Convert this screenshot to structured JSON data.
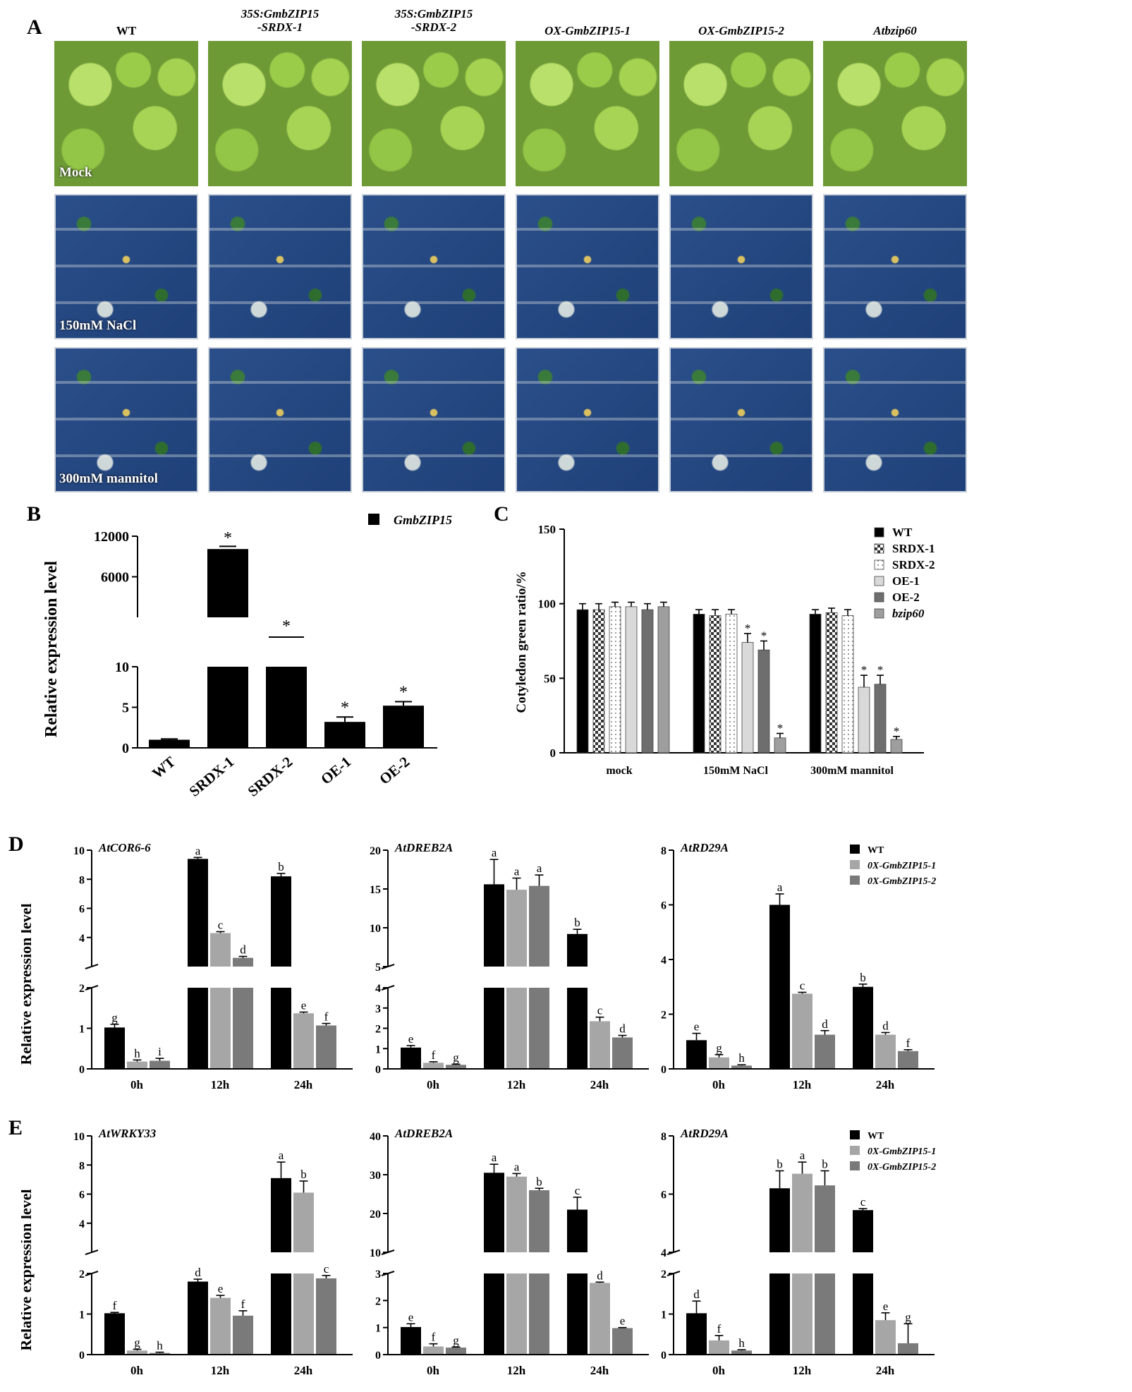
{
  "panelA": {
    "letter": "A",
    "columns": [
      {
        "title": "WT",
        "italic": false
      },
      {
        "title": "35S:GmbZIP15\n-SRDX-1",
        "italic": true
      },
      {
        "title": "35S:GmbZIP15\n-SRDX-2",
        "italic": true
      },
      {
        "title": "OX-GmbZIP15-1",
        "italic": true
      },
      {
        "title": "OX-GmbZIP15-2",
        "italic": true
      },
      {
        "title": "Atbzip60",
        "italic": true
      }
    ],
    "rows": [
      {
        "label": "Mock",
        "style": "green"
      },
      {
        "label": "150mM NaCl",
        "style": "blue"
      },
      {
        "label": "300mM mannitol",
        "style": "blue"
      }
    ]
  },
  "panelB": {
    "letter": "B",
    "legend": "GmbZIP15",
    "ylabel": "Relative expression level",
    "categories": [
      "WT",
      "SRDX-1",
      "SRDX-2",
      "OE-1",
      "OE-2"
    ],
    "upper_ticks": [
      "6000",
      "12000"
    ],
    "lower_ticks": [
      "0",
      "5",
      "10"
    ]
  },
  "panelC": {
    "letter": "C",
    "ylabel": "Cotyledon green ratio/%",
    "yticks": [
      "0",
      "50",
      "100",
      "150"
    ],
    "groups": [
      "mock",
      "150mM NaCl",
      "300mM mannitol"
    ],
    "legend": [
      "WT",
      "SRDX-1",
      "SRDX-2",
      "OE-1",
      "OE-2",
      "bzip60"
    ]
  },
  "panelD": {
    "letter": "D",
    "ylabel": "Relative expression level",
    "legend": [
      "WT",
      "0X-GmbZIP15-1",
      "0X-GmbZIP15-2"
    ],
    "groups": [
      "0h",
      "12h",
      "24h"
    ]
  },
  "panelE": {
    "letter": "E",
    "ylabel": "Relative expression level",
    "legend": [
      "WT",
      "0X-GmbZIP15-1",
      "0X-GmbZIP15-2"
    ],
    "groups": [
      "0h",
      "12h",
      "24h"
    ]
  },
  "colors": {
    "WT": "#000000",
    "line1": "#a6a6a6",
    "line2": "#7a7a7a",
    "OE1": "#d9d9d9",
    "OE2": "#6e6e6e",
    "bzip60": "#9e9e9e"
  },
  "chart_data": [
    {
      "id": "B",
      "type": "bar",
      "categories": [
        "WT",
        "SRDX-1",
        "SRDX-2",
        "OE-1",
        "OE-2"
      ],
      "series": [
        {
          "name": "GmbZIP15",
          "values": [
            1,
            10100,
            10,
            3.2,
            5.2
          ],
          "errors": [
            0.1,
            400,
            0,
            0.6,
            0.5
          ]
        }
      ],
      "significance": [
        "",
        "*",
        "*",
        "*",
        "*"
      ],
      "ylabel": "Relative expression level",
      "y_break": {
        "lower": [
          0,
          10
        ],
        "upper": [
          10,
          12000
        ]
      }
    },
    {
      "id": "C",
      "type": "bar",
      "categories": [
        "mock",
        "150mM NaCl",
        "300mM mannitol"
      ],
      "series": [
        {
          "name": "WT",
          "values": [
            96,
            93,
            93
          ],
          "errors": [
            4,
            3,
            3
          ]
        },
        {
          "name": "SRDX-1",
          "values": [
            96,
            92,
            94
          ],
          "errors": [
            4,
            4,
            3
          ]
        },
        {
          "name": "SRDX-2",
          "values": [
            98,
            93,
            92
          ],
          "errors": [
            3,
            3,
            4
          ]
        },
        {
          "name": "OE-1",
          "values": [
            98,
            74,
            44
          ],
          "errors": [
            3,
            6,
            8
          ]
        },
        {
          "name": "OE-2",
          "values": [
            96,
            69,
            46
          ],
          "errors": [
            4,
            6,
            6
          ]
        },
        {
          "name": "bzip60",
          "values": [
            98,
            10,
            9
          ],
          "errors": [
            3,
            3,
            2
          ]
        }
      ],
      "significance": [
        [
          "",
          "",
          "",
          "",
          "",
          ""
        ],
        [
          "",
          "",
          "",
          "*",
          "*",
          "*"
        ],
        [
          "",
          "",
          "",
          "*",
          "*",
          "*"
        ]
      ],
      "ylabel": "Cotyledon green ratio/%",
      "ylim": [
        0,
        150
      ]
    },
    {
      "id": "D1",
      "type": "bar",
      "title": "AtCOR6-6",
      "categories": [
        "0h",
        "12h",
        "24h"
      ],
      "series": [
        {
          "name": "WT",
          "values": [
            1.02,
            9.4,
            8.2
          ],
          "errors": [
            0.08,
            0.1,
            0.2
          ]
        },
        {
          "name": "0X-GmbZIP15-1",
          "values": [
            0.18,
            4.3,
            1.37
          ],
          "errors": [
            0.04,
            0.1,
            0.03
          ]
        },
        {
          "name": "0X-GmbZIP15-2",
          "values": [
            0.2,
            2.6,
            1.07
          ],
          "errors": [
            0.06,
            0.1,
            0.05
          ]
        }
      ],
      "letters": [
        [
          "g",
          "h",
          "i"
        ],
        [
          "a",
          "c",
          "d"
        ],
        [
          "b",
          "e",
          "f"
        ]
      ],
      "y_break": {
        "lower": [
          0,
          2
        ],
        "upper": [
          2,
          10
        ]
      }
    },
    {
      "id": "D2",
      "type": "bar",
      "title": "AtDREB2A",
      "categories": [
        "0h",
        "12h",
        "24h"
      ],
      "series": [
        {
          "name": "WT",
          "values": [
            1.05,
            15.6,
            9.2
          ],
          "errors": [
            0.1,
            3.2,
            0.6
          ]
        },
        {
          "name": "0X-GmbZIP15-1",
          "values": [
            0.3,
            14.9,
            2.35
          ],
          "errors": [
            0.05,
            1.5,
            0.2
          ]
        },
        {
          "name": "0X-GmbZIP15-2",
          "values": [
            0.2,
            15.4,
            1.55
          ],
          "errors": [
            0.03,
            1.4,
            0.1
          ]
        }
      ],
      "letters": [
        [
          "e",
          "f",
          "g"
        ],
        [
          "a",
          "a",
          "a"
        ],
        [
          "b",
          "c",
          "d"
        ]
      ],
      "y_break": {
        "lower": [
          0,
          4
        ],
        "upper": [
          5,
          20
        ]
      }
    },
    {
      "id": "D3",
      "type": "bar",
      "title": "AtRD29A",
      "categories": [
        "0h",
        "12h",
        "24h"
      ],
      "series": [
        {
          "name": "WT",
          "values": [
            1.05,
            6.0,
            3.0
          ],
          "errors": [
            0.25,
            0.4,
            0.1
          ]
        },
        {
          "name": "0X-GmbZIP15-1",
          "values": [
            0.42,
            2.75,
            1.25
          ],
          "errors": [
            0.1,
            0.05,
            0.08
          ]
        },
        {
          "name": "0X-GmbZIP15-2",
          "values": [
            0.12,
            1.25,
            0.65
          ],
          "errors": [
            0.03,
            0.15,
            0.05
          ]
        }
      ],
      "letters": [
        [
          "e",
          "g",
          "h"
        ],
        [
          "a",
          "c",
          "d"
        ],
        [
          "b",
          "d",
          "f"
        ]
      ],
      "ylim": [
        0,
        8
      ]
    },
    {
      "id": "E1",
      "type": "bar",
      "title": "AtWRKY33",
      "categories": [
        "0h",
        "12h",
        "24h"
      ],
      "series": [
        {
          "name": "WT",
          "values": [
            1.02,
            1.8,
            7.1
          ],
          "errors": [
            0.02,
            0.06,
            1.1
          ]
        },
        {
          "name": "0X-GmbZIP15-1",
          "values": [
            0.1,
            1.4,
            6.1
          ],
          "errors": [
            0.03,
            0.06,
            0.8
          ]
        },
        {
          "name": "0X-GmbZIP15-2",
          "values": [
            0.04,
            0.96,
            1.88
          ],
          "errors": [
            0.02,
            0.12,
            0.07
          ]
        }
      ],
      "letters": [
        [
          "f",
          "g",
          "h"
        ],
        [
          "d",
          "e",
          "f"
        ],
        [
          "a",
          "b",
          "c"
        ]
      ],
      "y_break": {
        "lower": [
          0,
          2
        ],
        "upper": [
          2,
          10
        ]
      }
    },
    {
      "id": "E2",
      "type": "bar",
      "title": "AtDREB2A",
      "categories": [
        "0h",
        "12h",
        "24h"
      ],
      "series": [
        {
          "name": "WT",
          "values": [
            1.02,
            30.5,
            21
          ],
          "errors": [
            0.12,
            2.2,
            3.2
          ]
        },
        {
          "name": "0X-GmbZIP15-1",
          "values": [
            0.3,
            29.5,
            2.65
          ],
          "errors": [
            0.1,
            0.8,
            0.03
          ]
        },
        {
          "name": "0X-GmbZIP15-2",
          "values": [
            0.26,
            26,
            0.98
          ],
          "errors": [
            0.02,
            0.5,
            0.02
          ]
        }
      ],
      "letters": [
        [
          "e",
          "f",
          "g"
        ],
        [
          "a",
          "a",
          "b"
        ],
        [
          "c",
          "d",
          "e"
        ]
      ],
      "y_break": {
        "lower": [
          0,
          3
        ],
        "upper": [
          10,
          40
        ]
      }
    },
    {
      "id": "E3",
      "type": "bar",
      "title": "AtRD29A",
      "categories": [
        "0h",
        "12h",
        "24h"
      ],
      "series": [
        {
          "name": "WT",
          "values": [
            1.02,
            6.2,
            5.45
          ],
          "errors": [
            0.3,
            0.6,
            0.05
          ]
        },
        {
          "name": "0X-GmbZIP15-1",
          "values": [
            0.35,
            6.7,
            0.85
          ],
          "errors": [
            0.12,
            0.4,
            0.18
          ]
        },
        {
          "name": "0X-GmbZIP15-2",
          "values": [
            0.1,
            6.3,
            0.28
          ],
          "errors": [
            0.02,
            0.5,
            0.48
          ]
        }
      ],
      "letters": [
        [
          "d",
          "f",
          "h"
        ],
        [
          "b",
          "a",
          "b"
        ],
        [
          "c",
          "e",
          "g"
        ]
      ],
      "y_break": {
        "lower": [
          0,
          2
        ],
        "upper": [
          4,
          8
        ]
      }
    }
  ]
}
